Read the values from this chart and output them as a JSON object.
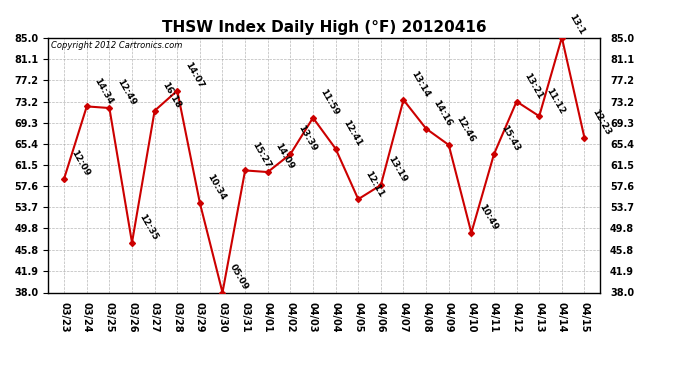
{
  "title": "THSW Index Daily High (°F) 20120416",
  "copyright": "Copyright 2012 Cartronics.com",
  "x_labels": [
    "03/23",
    "03/24",
    "03/25",
    "03/26",
    "03/27",
    "03/28",
    "03/29",
    "03/30",
    "03/31",
    "04/01",
    "04/02",
    "04/03",
    "04/04",
    "04/05",
    "04/06",
    "04/07",
    "04/08",
    "04/09",
    "04/10",
    "04/11",
    "04/12",
    "04/13",
    "04/14",
    "04/15"
  ],
  "y_values": [
    59.0,
    72.3,
    72.0,
    47.2,
    71.5,
    75.2,
    54.5,
    38.0,
    60.5,
    60.2,
    63.5,
    70.2,
    64.5,
    55.2,
    57.8,
    73.5,
    68.2,
    65.2,
    49.0,
    63.5,
    73.2,
    70.5,
    85.0,
    66.5
  ],
  "point_labels": [
    "12:09",
    "14:34",
    "12:49",
    "12:35",
    "16:18",
    "14:07",
    "10:34",
    "05:09",
    "15:27",
    "14:09",
    "13:39",
    "11:59",
    "12:41",
    "12:11",
    "13:19",
    "13:14",
    "14:16",
    "12:46",
    "10:49",
    "15:43",
    "13:21",
    "11:12",
    "13:1",
    "12:23"
  ],
  "ylim": [
    38.0,
    85.0
  ],
  "yticks": [
    38.0,
    41.9,
    45.8,
    49.8,
    53.7,
    57.6,
    61.5,
    65.4,
    69.3,
    73.2,
    77.2,
    81.1,
    85.0
  ],
  "line_color": "#cc0000",
  "marker_color": "#cc0000",
  "bg_color": "#ffffff",
  "grid_color": "#999999",
  "title_fontsize": 11,
  "tick_fontsize": 7,
  "point_label_fontsize": 6.5
}
